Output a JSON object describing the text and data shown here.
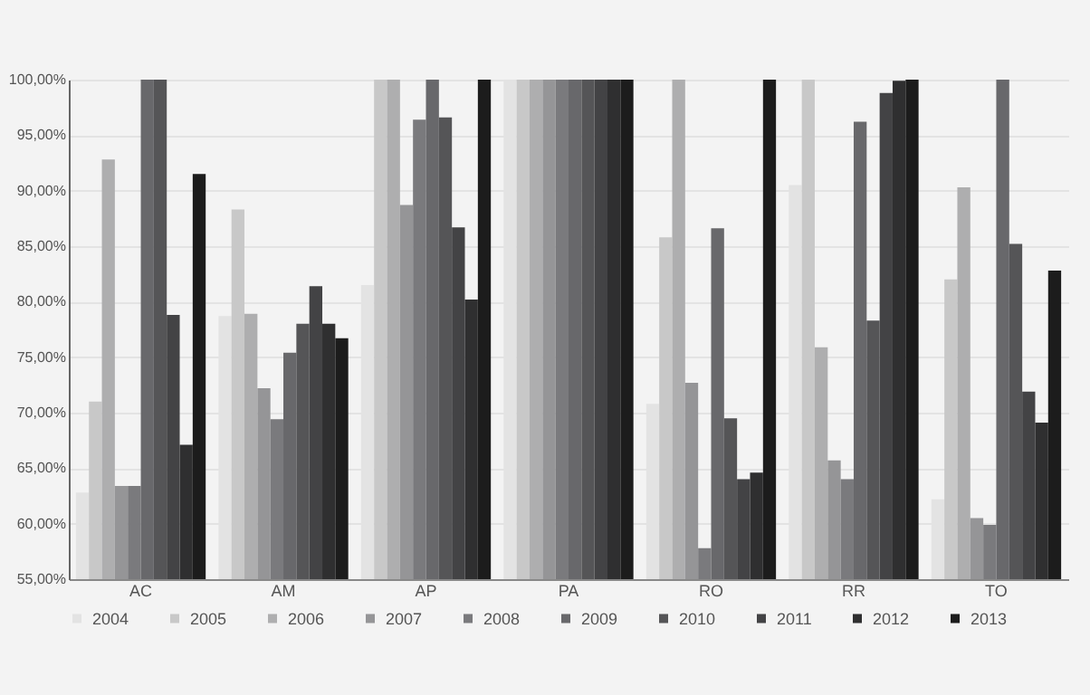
{
  "chart_data": {
    "type": "bar",
    "categories": [
      "AC",
      "AM",
      "AP",
      "PA",
      "RO",
      "RR",
      "TO"
    ],
    "series": [
      {
        "name": "2004",
        "color": "#e3e3e3",
        "values": [
          62.8,
          78.7,
          81.5,
          100,
          70.8,
          90.5,
          62.2
        ]
      },
      {
        "name": "2005",
        "color": "#c8c8c8",
        "values": [
          71.0,
          88.3,
          100,
          100,
          85.8,
          100,
          82.0
        ]
      },
      {
        "name": "2006",
        "color": "#aeaeaf",
        "values": [
          92.8,
          78.9,
          100,
          100,
          100,
          75.9,
          90.3
        ]
      },
      {
        "name": "2007",
        "color": "#959597",
        "values": [
          63.4,
          72.2,
          88.7,
          100,
          72.7,
          65.7,
          60.5
        ]
      },
      {
        "name": "2008",
        "color": "#7a7a7d",
        "values": [
          63.4,
          69.4,
          96.4,
          100,
          57.8,
          64.0,
          59.9
        ]
      },
      {
        "name": "2009",
        "color": "#68686b",
        "values": [
          100,
          75.4,
          100,
          100,
          86.6,
          96.2,
          100
        ]
      },
      {
        "name": "2010",
        "color": "#555557",
        "values": [
          100,
          78.0,
          96.6,
          100,
          69.5,
          78.3,
          85.2
        ]
      },
      {
        "name": "2011",
        "color": "#434345",
        "values": [
          78.8,
          81.4,
          86.7,
          100,
          64.0,
          98.8,
          71.9
        ]
      },
      {
        "name": "2012",
        "color": "#2f2f30",
        "values": [
          67.1,
          78.0,
          80.2,
          100,
          64.6,
          99.9,
          69.1
        ]
      },
      {
        "name": "2013",
        "color": "#1c1c1c",
        "values": [
          91.5,
          76.7,
          100,
          100,
          100,
          100,
          82.8
        ]
      }
    ],
    "ylim": [
      55,
      100
    ],
    "yticks": [
      {
        "value": 55,
        "label": "55,00%"
      },
      {
        "value": 60,
        "label": "60,00%"
      },
      {
        "value": 65,
        "label": "65,00%"
      },
      {
        "value": 70,
        "label": "70,00%"
      },
      {
        "value": 75,
        "label": "75,00%"
      },
      {
        "value": 80,
        "label": "80,00%"
      },
      {
        "value": 85,
        "label": "85,00%"
      },
      {
        "value": 90,
        "label": "90,00%"
      },
      {
        "value": 95,
        "label": "95,00%"
      },
      {
        "value": 100,
        "label": "100,00%"
      }
    ],
    "grid": "y",
    "legend": "bottom"
  }
}
